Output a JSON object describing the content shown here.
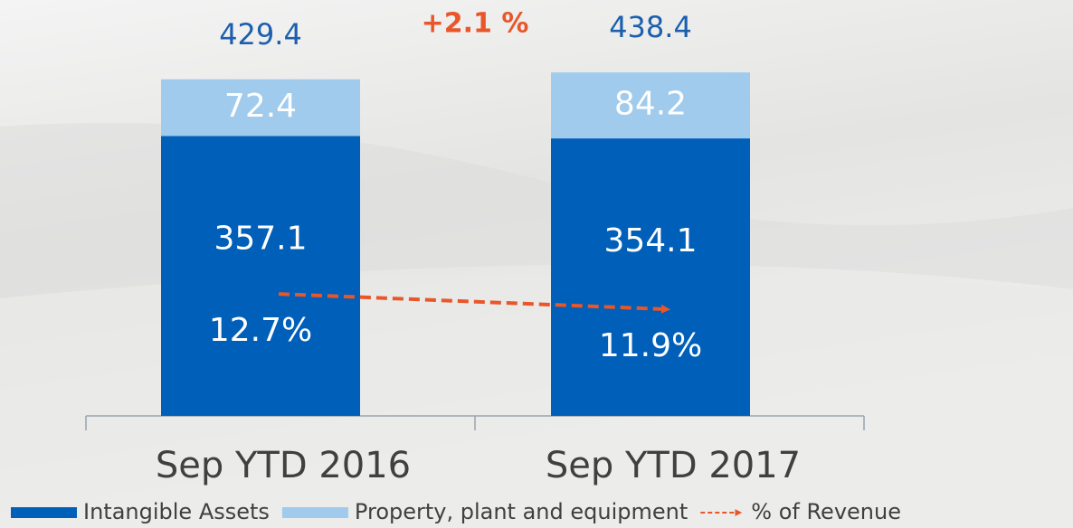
{
  "chart_data": {
    "type": "bar",
    "stacked": true,
    "annotation": "+2.1 %",
    "categories": [
      "Sep YTD 2016",
      "Sep YTD 2017"
    ],
    "totals": [
      429.4,
      438.4
    ],
    "series": [
      {
        "name": "Intangible Assets",
        "color": "#005fb9",
        "values": [
          357.1,
          354.1
        ]
      },
      {
        "name": "Property, plant and equipment",
        "color": "#a0cbec",
        "values": [
          72.4,
          84.2
        ]
      },
      {
        "name": "% of Revenue",
        "type": "line",
        "color": "#e8562a",
        "values": [
          12.7,
          11.9
        ],
        "value_labels": [
          "12.7%",
          "11.9%"
        ]
      }
    ]
  }
}
